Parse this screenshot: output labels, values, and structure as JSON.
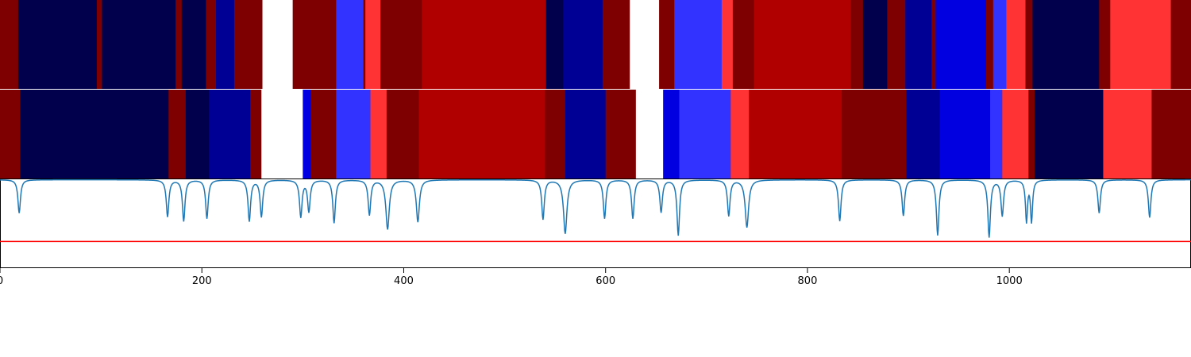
{
  "chart_data": {
    "type": "heatmap",
    "x_range": [
      0,
      1180
    ],
    "x_ticks": [
      0,
      200,
      400,
      600,
      800,
      1000
    ],
    "x_tick_labels": [
      "0",
      "200",
      "400",
      "600",
      "800",
      "1000"
    ],
    "colors": {
      "N": "#00004c",
      "B": "#000094",
      "MB": "#0000e0",
      "LB": "#3333ff",
      "W": "#ffffff",
      "LR": "#ff3333",
      "R": "#b00000",
      "DR": "#7f0000",
      "curve": "#1f77b4",
      "threshold": "#ff0000"
    },
    "rows": [
      {
        "segments": [
          [
            0,
            18,
            "DR"
          ],
          [
            18,
            96,
            "N"
          ],
          [
            96,
            101,
            "DR"
          ],
          [
            101,
            174,
            "N"
          ],
          [
            174,
            180,
            "DR"
          ],
          [
            180,
            204,
            "N"
          ],
          [
            204,
            214,
            "DR"
          ],
          [
            214,
            232,
            "B"
          ],
          [
            232,
            260,
            "DR"
          ],
          [
            260,
            290,
            "W"
          ],
          [
            290,
            333,
            "DR"
          ],
          [
            333,
            360,
            "LB"
          ],
          [
            360,
            362,
            "DR"
          ],
          [
            362,
            377,
            "LR"
          ],
          [
            377,
            418,
            "DR"
          ],
          [
            418,
            541,
            "R"
          ],
          [
            541,
            558,
            "N"
          ],
          [
            558,
            597,
            "B"
          ],
          [
            597,
            624,
            "DR"
          ],
          [
            624,
            653,
            "W"
          ],
          [
            653,
            668,
            "DR"
          ],
          [
            668,
            715,
            "LB"
          ],
          [
            715,
            726,
            "LR"
          ],
          [
            726,
            747,
            "DR"
          ],
          [
            747,
            843,
            "R"
          ],
          [
            843,
            855,
            "DR"
          ],
          [
            855,
            879,
            "N"
          ],
          [
            879,
            897,
            "DR"
          ],
          [
            897,
            923,
            "B"
          ],
          [
            923,
            927,
            "DR"
          ],
          [
            927,
            977,
            "MB"
          ],
          [
            977,
            984,
            "DR"
          ],
          [
            984,
            997,
            "LB"
          ],
          [
            997,
            1016,
            "LR"
          ],
          [
            1016,
            1023,
            "DR"
          ],
          [
            1023,
            1089,
            "N"
          ],
          [
            1089,
            1100,
            "DR"
          ],
          [
            1100,
            1160,
            "LR"
          ],
          [
            1160,
            1180,
            "DR"
          ]
        ]
      },
      {
        "segments": [
          [
            0,
            20,
            "DR"
          ],
          [
            20,
            167,
            "N"
          ],
          [
            167,
            184,
            "DR"
          ],
          [
            184,
            207,
            "N"
          ],
          [
            207,
            248,
            "B"
          ],
          [
            248,
            259,
            "DR"
          ],
          [
            259,
            300,
            "W"
          ],
          [
            300,
            308,
            "MB"
          ],
          [
            308,
            333,
            "DR"
          ],
          [
            333,
            367,
            "LB"
          ],
          [
            367,
            383,
            "LR"
          ],
          [
            383,
            415,
            "DR"
          ],
          [
            415,
            540,
            "R"
          ],
          [
            540,
            560,
            "DR"
          ],
          [
            560,
            600,
            "B"
          ],
          [
            600,
            630,
            "DR"
          ],
          [
            630,
            657,
            "W"
          ],
          [
            657,
            673,
            "MB"
          ],
          [
            673,
            724,
            "LB"
          ],
          [
            724,
            742,
            "LR"
          ],
          [
            742,
            834,
            "R"
          ],
          [
            834,
            898,
            "DR"
          ],
          [
            898,
            931,
            "B"
          ],
          [
            931,
            981,
            "MB"
          ],
          [
            981,
            993,
            "LB"
          ],
          [
            993,
            1019,
            "LR"
          ],
          [
            1019,
            1025,
            "DR"
          ],
          [
            1025,
            1093,
            "N"
          ],
          [
            1093,
            1141,
            "LR"
          ],
          [
            1141,
            1180,
            "DR"
          ]
        ]
      }
    ],
    "signal": {
      "y_range": [
        0,
        1
      ],
      "baseline": 0.995,
      "threshold": 0.3,
      "dips": [
        [
          19,
          0.62,
          1.5
        ],
        [
          166,
          0.58,
          1.5
        ],
        [
          182,
          0.53,
          1.5
        ],
        [
          205,
          0.56,
          1.5
        ],
        [
          247,
          0.53,
          1.5
        ],
        [
          259,
          0.58,
          1.5
        ],
        [
          298,
          0.58,
          1.5
        ],
        [
          306,
          0.64,
          1.5
        ],
        [
          331,
          0.51,
          1.5
        ],
        [
          366,
          0.6,
          1.5
        ],
        [
          384,
          0.44,
          2.0
        ],
        [
          414,
          0.52,
          1.8
        ],
        [
          538,
          0.55,
          1.5
        ],
        [
          560,
          0.39,
          2.0
        ],
        [
          599,
          0.56,
          1.5
        ],
        [
          627,
          0.56,
          1.5
        ],
        [
          655,
          0.63,
          1.5
        ],
        [
          672,
          0.37,
          1.5
        ],
        [
          722,
          0.59,
          1.5
        ],
        [
          740,
          0.46,
          2.0
        ],
        [
          832,
          0.53,
          1.5
        ],
        [
          895,
          0.59,
          1.5
        ],
        [
          929,
          0.37,
          1.5
        ],
        [
          980,
          0.35,
          1.5
        ],
        [
          993,
          0.59,
          1.5
        ],
        [
          1017,
          0.53,
          1.2
        ],
        [
          1022,
          0.53,
          1.2
        ],
        [
          1089,
          0.62,
          1.5
        ],
        [
          1139,
          0.57,
          1.5
        ]
      ]
    }
  }
}
